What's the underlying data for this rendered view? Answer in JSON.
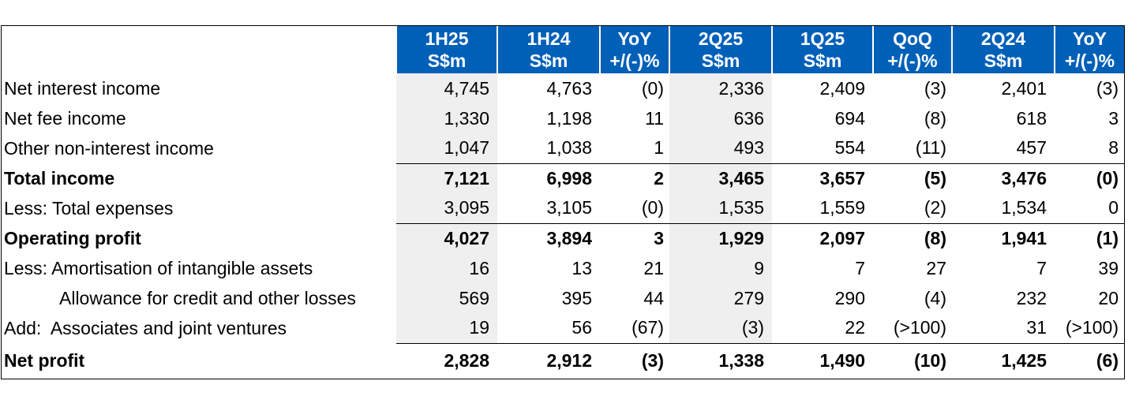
{
  "columns": [
    {
      "line1": "1H25",
      "line2": "S$m"
    },
    {
      "line1": "1H24",
      "line2": "S$m"
    },
    {
      "line1": "YoY",
      "line2": "+/(-)%"
    },
    {
      "line1": "2Q25",
      "line2": "S$m"
    },
    {
      "line1": "1Q25",
      "line2": "S$m"
    },
    {
      "line1": "QoQ",
      "line2": "+/(-)%"
    },
    {
      "line1": "2Q24",
      "line2": "S$m"
    },
    {
      "line1": "YoY",
      "line2": "+/(-)%"
    }
  ],
  "rows": [
    {
      "label": "Net interest income",
      "values": [
        "4,745",
        "4,763",
        "(0)",
        "2,336",
        "2,409",
        "(3)",
        "2,401",
        "(3)"
      ]
    },
    {
      "label": "Net fee income",
      "values": [
        "1,330",
        "1,198",
        "11",
        "636",
        "694",
        "(8)",
        "618",
        "3"
      ]
    },
    {
      "label": "Other non-interest income",
      "values": [
        "1,047",
        "1,038",
        "1",
        "493",
        "554",
        "(11)",
        "457",
        "8"
      ]
    },
    {
      "label": "Total income",
      "values": [
        "7,121",
        "6,998",
        "2",
        "3,465",
        "3,657",
        "(5)",
        "3,476",
        "(0)"
      ]
    },
    {
      "label": "Less: Total expenses",
      "values": [
        "3,095",
        "3,105",
        "(0)",
        "1,535",
        "1,559",
        "(2)",
        "1,534",
        "0"
      ]
    },
    {
      "label": "Operating profit",
      "values": [
        "4,027",
        "3,894",
        "3",
        "1,929",
        "2,097",
        "(8)",
        "1,941",
        "(1)"
      ]
    },
    {
      "label": "Less: Amortisation of intangible assets",
      "values": [
        "16",
        "13",
        "21",
        "9",
        "7",
        "27",
        "7",
        "39"
      ]
    },
    {
      "label": "Allowance for credit and other losses",
      "values": [
        "569",
        "395",
        "44",
        "279",
        "290",
        "(4)",
        "232",
        "20"
      ]
    },
    {
      "label": "Add:  Associates and joint ventures",
      "values": [
        "19",
        "56",
        "(67)",
        "(3)",
        "22",
        "(>100)",
        "31",
        "(>100)"
      ]
    },
    {
      "label": "Net profit",
      "values": [
        "2,828",
        "2,912",
        "(3)",
        "1,338",
        "1,490",
        "(10)",
        "1,425",
        "(6)"
      ]
    }
  ],
  "colors": {
    "header_bg": "#0060b8",
    "shade": "#efefef"
  }
}
